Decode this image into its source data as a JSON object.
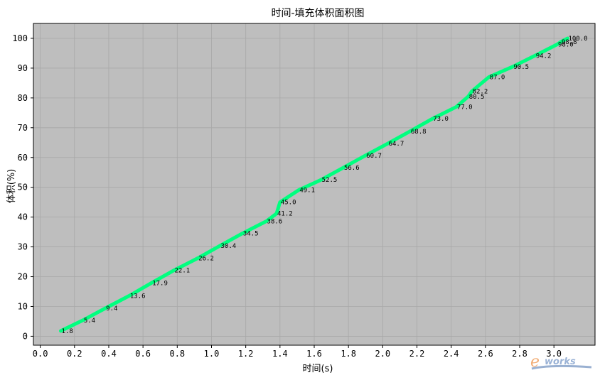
{
  "chart_data": {
    "type": "line",
    "title": "时间-填充体积面积图",
    "xlabel": "时间(s)",
    "ylabel": "体积(%)",
    "xlim": [
      -0.04,
      3.24
    ],
    "ylim": [
      -3,
      105
    ],
    "xticks": [
      "0.0",
      "0.2",
      "0.4",
      "0.6",
      "0.8",
      "1.0",
      "1.2",
      "1.4",
      "1.6",
      "1.8",
      "2.0",
      "2.2",
      "2.4",
      "2.6",
      "2.8",
      "3.0"
    ],
    "yticks": [
      "0",
      "10",
      "20",
      "30",
      "40",
      "50",
      "60",
      "70",
      "80",
      "90",
      "100"
    ],
    "grid": true,
    "series": [
      {
        "color": "#00ff7f",
        "x": [
          0.12,
          0.25,
          0.38,
          0.52,
          0.65,
          0.78,
          0.92,
          1.05,
          1.18,
          1.32,
          1.38,
          1.4,
          1.51,
          1.64,
          1.77,
          1.9,
          2.03,
          2.16,
          2.29,
          2.43,
          2.5,
          2.52,
          2.62,
          2.76,
          2.89,
          3.02,
          3.04,
          3.08
        ],
        "y": [
          1.8,
          5.4,
          9.4,
          13.6,
          17.9,
          22.1,
          26.2,
          30.4,
          34.5,
          38.6,
          41.2,
          45.0,
          49.1,
          52.5,
          56.6,
          60.7,
          64.7,
          68.8,
          73.0,
          77.0,
          80.5,
          82.2,
          87.0,
          90.5,
          94.2,
          98.0,
          98.8,
          100.0
        ],
        "labels": [
          "1.8",
          "5.4",
          "9.4",
          "13.6",
          "17.9",
          "22.1",
          "26.2",
          "30.4",
          "34.5",
          "38.6",
          "41.2",
          "45.0",
          "49.1",
          "52.5",
          "56.6",
          "60.7",
          "64.7",
          "68.8",
          "73.0",
          "77.0",
          "80.5",
          "82.2",
          "87.0",
          "90.5",
          "94.2",
          "98.0",
          "98.8",
          "100.0"
        ]
      }
    ]
  },
  "style": {
    "plot_bg": "#bebebe",
    "grid_color": "#a8a8a8",
    "line_color": "#00ff7f"
  },
  "watermark": {
    "text_e": "e",
    "text_works": "works"
  }
}
